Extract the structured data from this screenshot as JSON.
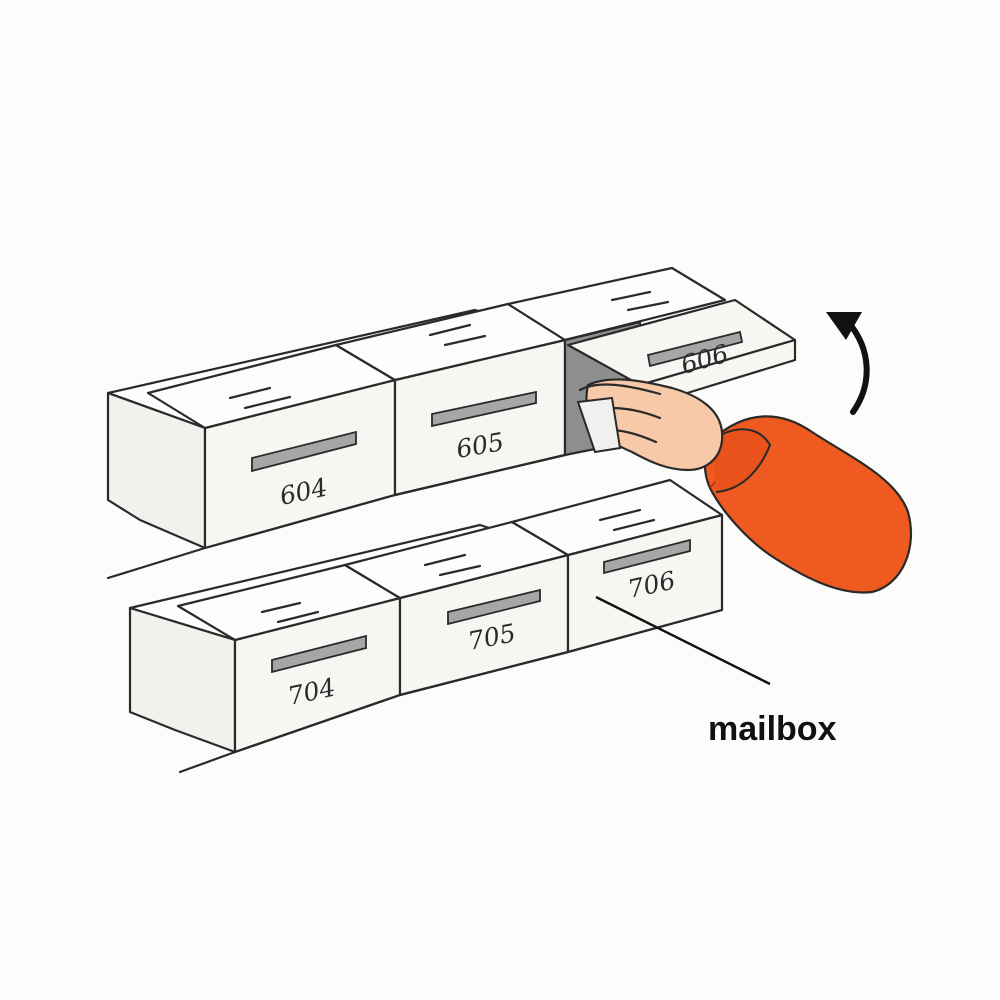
{
  "caption": "mailbox",
  "boxes": {
    "upper": [
      "604",
      "605",
      "606"
    ],
    "lower": [
      "704",
      "705",
      "706"
    ]
  },
  "colors": {
    "sleeve": "#ee5a20",
    "skin": "#f7c9a8",
    "slot": "#a6a6a6",
    "ink": "#2a2a2a"
  }
}
